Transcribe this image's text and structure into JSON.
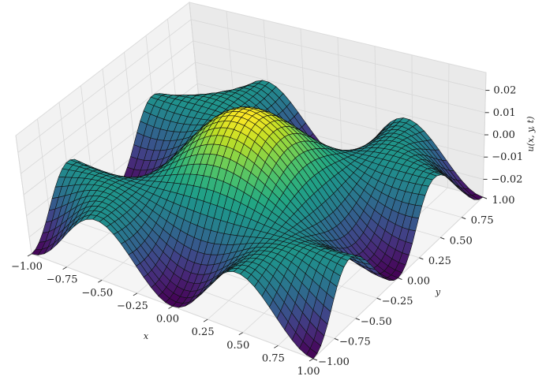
{
  "chart_data": {
    "type": "surface",
    "title": "",
    "xlabel": "x",
    "ylabel": "y",
    "zlabel": "u(x, y, t)",
    "xlim": [
      -1.0,
      1.0
    ],
    "ylim": [
      -1.0,
      1.0
    ],
    "zlim": [
      -0.028,
      0.028
    ],
    "x_ticks": [
      "−1.00",
      "−0.75",
      "−0.50",
      "−0.25",
      "0.00",
      "0.25",
      "0.50",
      "0.75",
      "1.00"
    ],
    "y_ticks": [
      "−1.00",
      "−0.75",
      "−0.50",
      "−0.25",
      "0.00",
      "0.25",
      "0.50",
      "0.75",
      "1.00"
    ],
    "z_ticks": [
      "−0.02",
      "−0.01",
      "0.00",
      "0.01",
      "0.02"
    ],
    "x_tick_values": [
      -1.0,
      -0.75,
      -0.5,
      -0.25,
      0.0,
      0.25,
      0.5,
      0.75,
      1.0
    ],
    "y_tick_values": [
      -1.0,
      -0.75,
      -0.5,
      -0.25,
      0.0,
      0.25,
      0.5,
      0.75,
      1.0
    ],
    "z_tick_values": [
      -0.02,
      -0.01,
      0.0,
      0.01,
      0.02
    ],
    "colormap": "viridis",
    "grid": true,
    "surface_function": "0.028*cos(pi*x)*cos(pi*y)*cos(pi*x*y)",
    "mesh_resolution": 42
  }
}
